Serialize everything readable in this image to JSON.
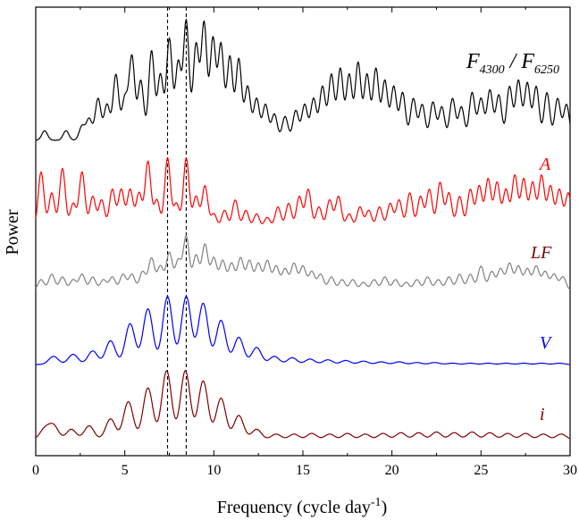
{
  "chart_data": {
    "type": "line",
    "title": "",
    "xlabel": "Frequency (cycle day",
    "xlabel_sup": "-1",
    "xlabel_close": ")",
    "ylabel": "Power",
    "xlim": [
      0,
      30
    ],
    "x_ticks": [
      0,
      5,
      10,
      15,
      20,
      25,
      30
    ],
    "x_tick_labels": [
      "0",
      "5",
      "10",
      "15",
      "20",
      "25",
      "30"
    ],
    "y_ticks": "none",
    "grid": false,
    "vertical_lines": [
      {
        "x": 7.4,
        "style": "dashed",
        "color": "#000000"
      },
      {
        "x": 8.45,
        "style": "dashed",
        "color": "#000000"
      }
    ],
    "series": [
      {
        "name": "F4300 / F6250",
        "label_parts": {
          "a": "F",
          "a_sub": "4300",
          "sep": " / ",
          "b": "F",
          "b_sub": "6250"
        },
        "color": "#000000",
        "peaks": [
          [
            0.5,
            0.08
          ],
          [
            1.7,
            0.08
          ],
          [
            2.6,
            0.12
          ],
          [
            3.0,
            0.18
          ],
          [
            3.5,
            0.35
          ],
          [
            4.0,
            0.3
          ],
          [
            4.5,
            0.55
          ],
          [
            5.0,
            0.35
          ],
          [
            5.4,
            0.7
          ],
          [
            5.9,
            0.5
          ],
          [
            6.5,
            0.75
          ],
          [
            7.0,
            0.55
          ],
          [
            7.5,
            0.85
          ],
          [
            8.0,
            0.65
          ],
          [
            8.45,
            1.0
          ],
          [
            9.0,
            0.8
          ],
          [
            9.45,
            0.98
          ],
          [
            9.95,
            0.85
          ],
          [
            10.4,
            0.8
          ],
          [
            10.9,
            0.7
          ],
          [
            11.4,
            0.68
          ],
          [
            11.9,
            0.45
          ],
          [
            12.4,
            0.35
          ],
          [
            12.9,
            0.3
          ],
          [
            13.4,
            0.22
          ],
          [
            14.0,
            0.2
          ],
          [
            14.6,
            0.25
          ],
          [
            15.1,
            0.3
          ],
          [
            15.6,
            0.35
          ],
          [
            16.1,
            0.45
          ],
          [
            16.6,
            0.55
          ],
          [
            17.1,
            0.6
          ],
          [
            17.6,
            0.55
          ],
          [
            18.1,
            0.65
          ],
          [
            18.6,
            0.55
          ],
          [
            19.1,
            0.6
          ],
          [
            19.6,
            0.5
          ],
          [
            20.1,
            0.45
          ],
          [
            20.6,
            0.4
          ],
          [
            21.2,
            0.35
          ],
          [
            21.7,
            0.3
          ],
          [
            22.3,
            0.32
          ],
          [
            22.8,
            0.28
          ],
          [
            23.4,
            0.35
          ],
          [
            23.9,
            0.28
          ],
          [
            24.5,
            0.4
          ],
          [
            25.0,
            0.35
          ],
          [
            25.5,
            0.42
          ],
          [
            26.0,
            0.38
          ],
          [
            26.6,
            0.45
          ],
          [
            27.1,
            0.5
          ],
          [
            27.6,
            0.48
          ],
          [
            28.1,
            0.45
          ],
          [
            28.7,
            0.4
          ],
          [
            29.3,
            0.35
          ],
          [
            29.8,
            0.3
          ]
        ]
      },
      {
        "name": "A",
        "color": "#ff0000",
        "peaks": [
          [
            0.3,
            0.8
          ],
          [
            0.9,
            0.5
          ],
          [
            1.5,
            0.85
          ],
          [
            2.1,
            0.35
          ],
          [
            2.6,
            0.8
          ],
          [
            3.2,
            0.45
          ],
          [
            3.7,
            0.4
          ],
          [
            4.3,
            0.55
          ],
          [
            4.8,
            0.55
          ],
          [
            5.3,
            0.55
          ],
          [
            5.8,
            0.5
          ],
          [
            6.3,
            0.95
          ],
          [
            6.8,
            0.4
          ],
          [
            7.4,
            1.0
          ],
          [
            7.9,
            0.35
          ],
          [
            8.45,
            1.0
          ],
          [
            9.0,
            0.45
          ],
          [
            9.5,
            0.6
          ],
          [
            10.0,
            0.2
          ],
          [
            10.6,
            0.25
          ],
          [
            11.2,
            0.4
          ],
          [
            11.8,
            0.25
          ],
          [
            12.4,
            0.2
          ],
          [
            13.0,
            0.15
          ],
          [
            13.6,
            0.3
          ],
          [
            14.2,
            0.35
          ],
          [
            14.8,
            0.45
          ],
          [
            15.3,
            0.55
          ],
          [
            15.9,
            0.3
          ],
          [
            16.5,
            0.4
          ],
          [
            17.0,
            0.45
          ],
          [
            17.6,
            0.2
          ],
          [
            18.2,
            0.3
          ],
          [
            18.7,
            0.25
          ],
          [
            19.3,
            0.3
          ],
          [
            19.9,
            0.35
          ],
          [
            20.4,
            0.4
          ],
          [
            21.0,
            0.5
          ],
          [
            21.6,
            0.45
          ],
          [
            22.1,
            0.55
          ],
          [
            22.7,
            0.65
          ],
          [
            23.2,
            0.5
          ],
          [
            23.8,
            0.45
          ],
          [
            24.4,
            0.55
          ],
          [
            24.9,
            0.6
          ],
          [
            25.4,
            0.7
          ],
          [
            25.9,
            0.65
          ],
          [
            26.4,
            0.55
          ],
          [
            26.9,
            0.75
          ],
          [
            27.4,
            0.7
          ],
          [
            27.9,
            0.65
          ],
          [
            28.4,
            0.75
          ],
          [
            28.9,
            0.6
          ],
          [
            29.4,
            0.55
          ],
          [
            29.9,
            0.5
          ]
        ]
      },
      {
        "name": "LF",
        "color": "#808080",
        "peaks": [
          [
            0.3,
            0.2
          ],
          [
            0.9,
            0.3
          ],
          [
            1.5,
            0.25
          ],
          [
            2.1,
            0.2
          ],
          [
            2.6,
            0.3
          ],
          [
            3.2,
            0.25
          ],
          [
            3.8,
            0.2
          ],
          [
            4.3,
            0.25
          ],
          [
            4.9,
            0.3
          ],
          [
            5.4,
            0.3
          ],
          [
            6.0,
            0.35
          ],
          [
            6.5,
            0.6
          ],
          [
            7.0,
            0.45
          ],
          [
            7.5,
            0.7
          ],
          [
            8.0,
            0.55
          ],
          [
            8.45,
            1.0
          ],
          [
            9.0,
            0.65
          ],
          [
            9.5,
            0.85
          ],
          [
            10.0,
            0.6
          ],
          [
            10.5,
            0.55
          ],
          [
            11.0,
            0.5
          ],
          [
            11.5,
            0.6
          ],
          [
            12.0,
            0.55
          ],
          [
            12.5,
            0.5
          ],
          [
            13.0,
            0.55
          ],
          [
            13.5,
            0.45
          ],
          [
            14.0,
            0.4
          ],
          [
            14.5,
            0.5
          ],
          [
            15.0,
            0.45
          ],
          [
            15.5,
            0.35
          ],
          [
            16.0,
            0.3
          ],
          [
            16.6,
            0.25
          ],
          [
            17.2,
            0.2
          ],
          [
            17.8,
            0.2
          ],
          [
            18.4,
            0.15
          ],
          [
            19.0,
            0.2
          ],
          [
            19.6,
            0.25
          ],
          [
            20.2,
            0.2
          ],
          [
            20.8,
            0.15
          ],
          [
            21.4,
            0.2
          ],
          [
            22.0,
            0.25
          ],
          [
            22.6,
            0.2
          ],
          [
            23.2,
            0.25
          ],
          [
            23.8,
            0.3
          ],
          [
            24.4,
            0.3
          ],
          [
            25.0,
            0.45
          ],
          [
            25.6,
            0.35
          ],
          [
            26.1,
            0.4
          ],
          [
            26.6,
            0.5
          ],
          [
            27.1,
            0.45
          ],
          [
            27.6,
            0.4
          ],
          [
            28.1,
            0.45
          ],
          [
            28.6,
            0.35
          ],
          [
            29.1,
            0.3
          ],
          [
            29.6,
            0.25
          ]
        ]
      },
      {
        "name": "V",
        "color": "#0000ff",
        "peaks": [
          [
            1.0,
            0.12
          ],
          [
            2.1,
            0.15
          ],
          [
            3.2,
            0.2
          ],
          [
            4.2,
            0.35
          ],
          [
            5.3,
            0.6
          ],
          [
            6.3,
            0.82
          ],
          [
            7.4,
            1.0
          ],
          [
            8.45,
            1.0
          ],
          [
            9.4,
            0.9
          ],
          [
            10.4,
            0.65
          ],
          [
            11.4,
            0.4
          ],
          [
            12.4,
            0.25
          ],
          [
            13.4,
            0.12
          ],
          [
            14.4,
            0.1
          ],
          [
            15.4,
            0.08
          ],
          [
            16.4,
            0.07
          ],
          [
            17.4,
            0.06
          ],
          [
            18.4,
            0.05
          ],
          [
            19.4,
            0.04
          ],
          [
            20.4,
            0.04
          ],
          [
            21.4,
            0.03
          ],
          [
            22.4,
            0.03
          ],
          [
            23.4,
            0.02
          ],
          [
            24.4,
            0.02
          ],
          [
            25.4,
            0.02
          ],
          [
            26.4,
            0.02
          ],
          [
            27.4,
            0.02
          ],
          [
            28.4,
            0.02
          ],
          [
            29.4,
            0.02
          ]
        ]
      },
      {
        "name": "i",
        "color": "#800000",
        "peaks": [
          [
            0.5,
            0.15
          ],
          [
            1.0,
            0.2
          ],
          [
            2.0,
            0.15
          ],
          [
            3.0,
            0.2
          ],
          [
            4.2,
            0.3
          ],
          [
            5.2,
            0.55
          ],
          [
            6.3,
            0.75
          ],
          [
            7.35,
            1.0
          ],
          [
            8.4,
            1.0
          ],
          [
            9.4,
            0.85
          ],
          [
            10.4,
            0.6
          ],
          [
            11.4,
            0.35
          ],
          [
            12.4,
            0.15
          ],
          [
            13.5,
            0.08
          ],
          [
            14.5,
            0.08
          ],
          [
            15.5,
            0.09
          ],
          [
            16.5,
            0.08
          ],
          [
            17.5,
            0.09
          ],
          [
            18.5,
            0.08
          ],
          [
            19.5,
            0.09
          ],
          [
            20.5,
            0.1
          ],
          [
            21.5,
            0.1
          ],
          [
            22.5,
            0.11
          ],
          [
            23.5,
            0.1
          ],
          [
            24.5,
            0.11
          ],
          [
            25.5,
            0.1
          ],
          [
            26.5,
            0.09
          ],
          [
            27.5,
            0.09
          ],
          [
            28.5,
            0.08
          ],
          [
            29.5,
            0.08
          ]
        ]
      }
    ]
  }
}
